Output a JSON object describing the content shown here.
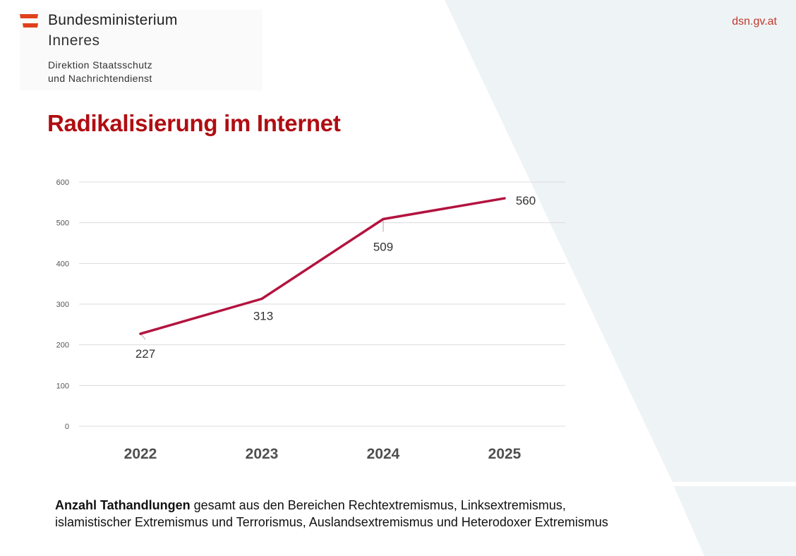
{
  "header": {
    "ministry_title": "Bundesministerium",
    "ministry_sub": "Inneres",
    "department_line1": "Direktion Staatsschutz",
    "department_line2": "und Nachrichtendienst",
    "site_url": "dsn.gv.at",
    "logo_icon": "austria-flag-stripes-icon"
  },
  "page": {
    "title": "Radikalisierung im Internet"
  },
  "colors": {
    "title_red": "#b00d12",
    "line": "#b3133f",
    "url_red": "#c0392b",
    "background_panel": "#eef3f6"
  },
  "caption": {
    "bold": "Anzahl Tathandlungen",
    "rest_line1": " gesamt aus den Bereichen Rechtextremismus, Linksextremismus,",
    "line2": "islamistischer Extremismus und Terrorismus, Auslandsextremismus und Heterodoxer Extremismus"
  },
  "chart_data": {
    "type": "line",
    "title": "",
    "xlabel": "",
    "ylabel": "",
    "categories": [
      "2022",
      "2023",
      "2024",
      "2025"
    ],
    "series": [
      {
        "name": "Anzahl Tathandlungen",
        "values": [
          227,
          313,
          509,
          560
        ]
      }
    ],
    "data_labels": [
      "227",
      "313",
      "509",
      "560"
    ],
    "y_ticks": [
      0,
      100,
      200,
      300,
      400,
      500,
      600
    ],
    "ylim": [
      0,
      600
    ],
    "grid": true,
    "legend": "none"
  }
}
